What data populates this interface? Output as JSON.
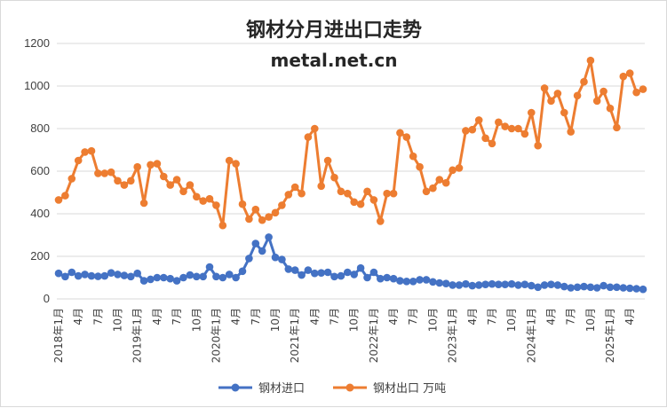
{
  "chart_data": {
    "type": "line",
    "title": "钢材分月进出口走势",
    "subtitle": "metal.net.cn",
    "ylim": [
      0,
      1200
    ],
    "yticks": [
      0,
      200,
      400,
      600,
      800,
      1000,
      1200
    ],
    "grid": true,
    "legend_position": "bottom",
    "x_tick_labels": [
      {
        "i": 0,
        "label": "2018年1月"
      },
      {
        "i": 3,
        "label": "4月"
      },
      {
        "i": 6,
        "label": "7月"
      },
      {
        "i": 9,
        "label": "10月"
      },
      {
        "i": 12,
        "label": "2019年1月"
      },
      {
        "i": 15,
        "label": "4月"
      },
      {
        "i": 18,
        "label": "7月"
      },
      {
        "i": 21,
        "label": "10月"
      },
      {
        "i": 24,
        "label": "2020年1月"
      },
      {
        "i": 27,
        "label": "4月"
      },
      {
        "i": 30,
        "label": "7月"
      },
      {
        "i": 33,
        "label": "10月"
      },
      {
        "i": 36,
        "label": "2021年1月"
      },
      {
        "i": 39,
        "label": "4月"
      },
      {
        "i": 42,
        "label": "7月"
      },
      {
        "i": 45,
        "label": "10月"
      },
      {
        "i": 48,
        "label": "2022年1月"
      },
      {
        "i": 51,
        "label": "4月"
      },
      {
        "i": 54,
        "label": "7月"
      },
      {
        "i": 57,
        "label": "10月"
      },
      {
        "i": 60,
        "label": "2023年1月"
      },
      {
        "i": 63,
        "label": "4月"
      },
      {
        "i": 66,
        "label": "7月"
      },
      {
        "i": 69,
        "label": "10月"
      },
      {
        "i": 72,
        "label": "2024年1月"
      },
      {
        "i": 75,
        "label": "4月"
      },
      {
        "i": 78,
        "label": "7月"
      },
      {
        "i": 81,
        "label": "10月"
      },
      {
        "i": 84,
        "label": "2025年1月"
      },
      {
        "i": 87,
        "label": "4月"
      }
    ],
    "series": [
      {
        "name": "钢材进口",
        "color": "#4472c4",
        "values": [
          120,
          105,
          125,
          108,
          115,
          108,
          106,
          108,
          122,
          115,
          110,
          105,
          120,
          85,
          92,
          100,
          100,
          95,
          85,
          100,
          112,
          105,
          105,
          150,
          105,
          100,
          115,
          100,
          130,
          190,
          260,
          225,
          290,
          195,
          185,
          140,
          135,
          112,
          135,
          120,
          122,
          125,
          105,
          108,
          125,
          115,
          145,
          100,
          125,
          95,
          100,
          95,
          85,
          82,
          82,
          90,
          90,
          80,
          75,
          72,
          65,
          65,
          70,
          62,
          65,
          68,
          70,
          68,
          68,
          70,
          65,
          68,
          62,
          55,
          65,
          68,
          65,
          58,
          52,
          55,
          58,
          55,
          52,
          62,
          55,
          55,
          52,
          50,
          48,
          45
        ]
      },
      {
        "name": "钢材出口 万吨",
        "color": "#ed7d31",
        "values": [
          465,
          485,
          565,
          650,
          690,
          695,
          590,
          590,
          595,
          555,
          535,
          555,
          620,
          450,
          630,
          635,
          575,
          535,
          560,
          505,
          535,
          480,
          460,
          470,
          440,
          345,
          650,
          635,
          445,
          375,
          420,
          370,
          385,
          405,
          440,
          490,
          525,
          495,
          760,
          800,
          530,
          650,
          570,
          505,
          495,
          455,
          445,
          505,
          465,
          365,
          495,
          495,
          780,
          760,
          670,
          620,
          505,
          520,
          560,
          545,
          605,
          615,
          790,
          795,
          840,
          755,
          730,
          830,
          810,
          800,
          800,
          775,
          875,
          720,
          990,
          930,
          965,
          875,
          785,
          955,
          1020,
          1120,
          930,
          975,
          895,
          805,
          1045,
          1060,
          970,
          985
        ]
      }
    ]
  }
}
